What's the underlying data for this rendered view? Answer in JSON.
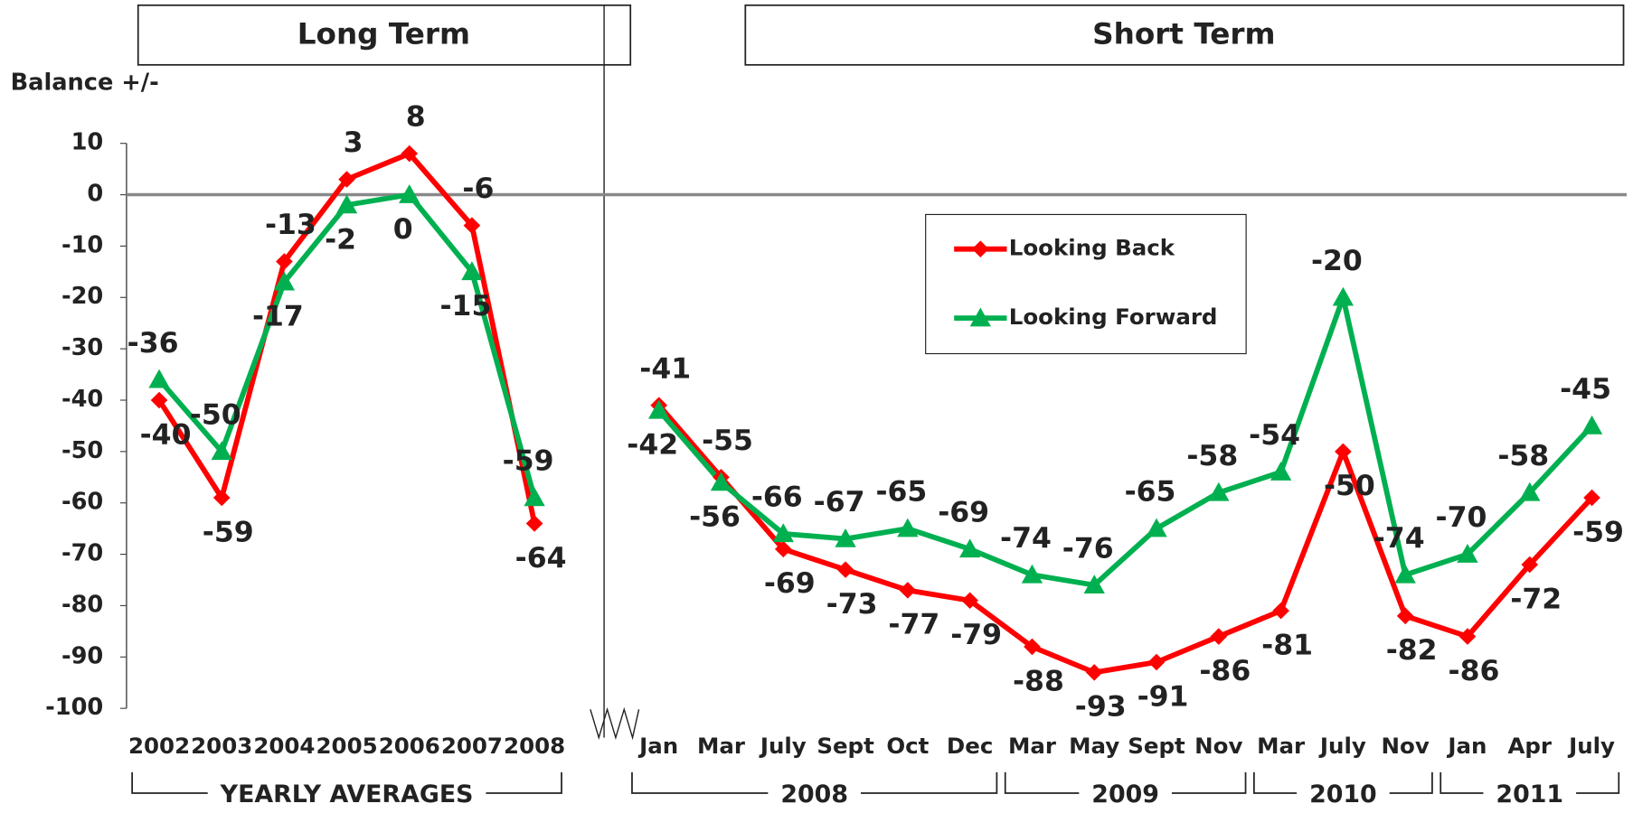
{
  "chart_data": [
    {
      "type": "line",
      "title": "Long Term",
      "ylabel": "Balance +/-",
      "category_groups": [
        {
          "label": "YEARLY AVERAGES",
          "categories": [
            "2002",
            "2003",
            "2004",
            "2005",
            "2006",
            "2007",
            "2008"
          ]
        }
      ],
      "series": [
        {
          "name": "Looking Back",
          "color": "#ff0000",
          "marker": "diamond",
          "values": [
            -40,
            -59,
            -13,
            3,
            8,
            -6,
            -64
          ]
        },
        {
          "name": "Looking Forward",
          "color": "#00b050",
          "marker": "triangle",
          "values": [
            -36,
            -50,
            -17,
            -2,
            0,
            -15,
            -59
          ]
        }
      ],
      "ylim": [
        -100,
        10
      ],
      "yticks": [
        -100,
        -90,
        -80,
        -70,
        -60,
        -50,
        -40,
        -30,
        -20,
        -10,
        0,
        10
      ]
    },
    {
      "type": "line",
      "title": "Short Term",
      "category_groups": [
        {
          "label": "2008",
          "categories": [
            "Jan",
            "Mar",
            "July",
            "Sept",
            "Oct",
            "Dec"
          ]
        },
        {
          "label": "2009",
          "categories": [
            "Mar",
            "May",
            "Sept",
            "Nov"
          ]
        },
        {
          "label": "2010",
          "categories": [
            "Mar",
            "July",
            "Nov"
          ]
        },
        {
          "label": "2011",
          "categories": [
            "Jan",
            "Apr",
            "July"
          ]
        }
      ],
      "series": [
        {
          "name": "Looking Back",
          "color": "#ff0000",
          "marker": "diamond",
          "values": [
            -41,
            -55,
            -69,
            -73,
            -77,
            -79,
            -88,
            -93,
            -91,
            -86,
            -81,
            -50,
            -82,
            -86,
            -72,
            -59
          ]
        },
        {
          "name": "Looking Forward",
          "color": "#00b050",
          "marker": "triangle",
          "values": [
            -42,
            -56,
            -66,
            -67,
            -65,
            -69,
            -74,
            -76,
            -65,
            -58,
            -54,
            -20,
            -74,
            -70,
            -58,
            -45
          ]
        }
      ],
      "ylim": [
        -100,
        10
      ],
      "legend": "upper center"
    }
  ]
}
